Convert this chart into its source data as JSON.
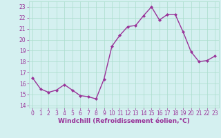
{
  "x": [
    0,
    1,
    2,
    3,
    4,
    5,
    6,
    7,
    8,
    9,
    10,
    11,
    12,
    13,
    14,
    15,
    16,
    17,
    18,
    19,
    20,
    21,
    22,
    23
  ],
  "y": [
    16.5,
    15.5,
    15.2,
    15.4,
    15.9,
    15.4,
    14.9,
    14.8,
    14.6,
    16.4,
    19.4,
    20.4,
    21.2,
    21.3,
    22.2,
    23.0,
    21.8,
    22.3,
    22.3,
    20.7,
    18.9,
    18.0,
    18.1,
    18.5
  ],
  "line_color": "#993399",
  "marker": "D",
  "marker_size": 2.0,
  "linewidth": 1.0,
  "xlabel": "Windchill (Refroidissement éolien,°C)",
  "xlabel_fontsize": 6.5,
  "xlabel_color": "#993399",
  "bg_color": "#d4f0f0",
  "grid_color": "#aaddcc",
  "yticks": [
    14,
    15,
    16,
    17,
    18,
    19,
    20,
    21,
    22,
    23
  ],
  "xticks": [
    0,
    1,
    2,
    3,
    4,
    5,
    6,
    7,
    8,
    9,
    10,
    11,
    12,
    13,
    14,
    15,
    16,
    17,
    18,
    19,
    20,
    21,
    22,
    23
  ],
  "ylim": [
    13.8,
    23.5
  ],
  "xlim": [
    -0.5,
    23.5
  ],
  "tick_fontsize": 5.5,
  "tick_color": "#993399"
}
